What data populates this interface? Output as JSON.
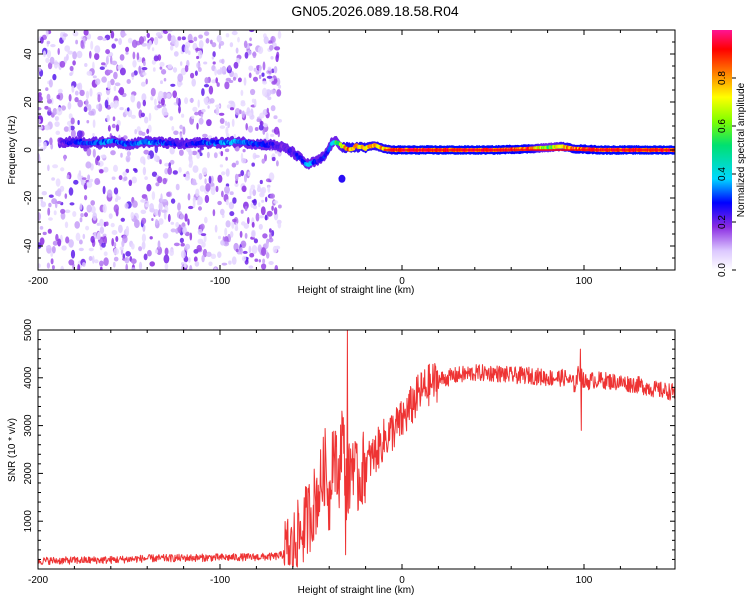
{
  "title": "GN05.2026.089.18.58.R04",
  "chart_data": [
    {
      "type": "heatmap",
      "name": "spectrogram",
      "xlabel": "Height of straight line (km)",
      "ylabel": "Frequency (Hz)",
      "xlim": [
        -200,
        150
      ],
      "ylim": [
        -50,
        50
      ],
      "x_ticks": [
        -200,
        -100,
        0,
        100
      ],
      "x_tick_labels": [
        "-200",
        "-100",
        "0",
        "100"
      ],
      "y_ticks": [
        -40,
        -20,
        0,
        20,
        40
      ],
      "y_tick_labels": [
        "-40",
        "-20",
        "0",
        "20",
        "40"
      ],
      "noise_region_km": [
        -200,
        -67
      ],
      "ridge": {
        "x": [
          -188,
          -180,
          -170,
          -160,
          -150,
          -140,
          -130,
          -120,
          -110,
          -100,
          -90,
          -80,
          -70,
          -65,
          -60,
          -55,
          -52,
          -48,
          -45,
          -42,
          -40,
          -38,
          -35,
          -32,
          -28,
          -25,
          -20,
          -15,
          -10,
          -5,
          0,
          10,
          30,
          50,
          70,
          80,
          88,
          95,
          110,
          130,
          150
        ],
        "y": [
          3,
          3.5,
          3,
          3.5,
          2.5,
          3.5,
          3,
          2.5,
          3,
          3,
          3.5,
          2.5,
          2,
          1,
          -1,
          -4,
          -6,
          -5,
          -4,
          -2,
          1,
          3.5,
          3,
          1,
          0.5,
          1.5,
          1,
          2,
          0.5,
          0,
          0,
          0,
          0,
          0,
          0.5,
          1,
          1.5,
          0.5,
          0,
          0,
          0
        ],
        "amplitude": [
          0.2,
          0.3,
          0.3,
          0.35,
          0.3,
          0.35,
          0.3,
          0.25,
          0.3,
          0.35,
          0.35,
          0.3,
          0.25,
          0.2,
          0.25,
          0.3,
          0.4,
          0.3,
          0.25,
          0.3,
          0.35,
          0.45,
          0.6,
          0.8,
          0.85,
          0.8,
          0.85,
          0.8,
          0.85,
          0.9,
          0.95,
          0.95,
          0.95,
          0.95,
          0.9,
          0.6,
          0.8,
          0.9,
          0.95,
          0.95,
          0.95
        ]
      },
      "colorbar": {
        "label": "Normalized spectral amplitude",
        "ticks": [
          0,
          0.2,
          0.4,
          0.6,
          0.8
        ],
        "tick_labels": [
          "0.0",
          "0.2",
          "0.4",
          "0.6",
          "0.8"
        ],
        "range": [
          0,
          1
        ]
      }
    },
    {
      "type": "line",
      "name": "snr",
      "xlabel": "Height of straight line (km)",
      "ylabel": "SNR (10 * v/v)",
      "xlim": [
        -200,
        150
      ],
      "ylim": [
        0,
        5000
      ],
      "x_ticks": [
        -200,
        -100,
        0,
        100
      ],
      "x_tick_labels": [
        "-200",
        "-100",
        "0",
        "100"
      ],
      "y_ticks": [
        1000,
        2000,
        3000,
        4000,
        5000
      ],
      "y_tick_labels": [
        "1000",
        "2000",
        "3000",
        "4000",
        "5000"
      ],
      "color": "#ee3333",
      "series": [
        {
          "name": "SNR",
          "x": [
            -200,
            -180,
            -160,
            -140,
            -120,
            -100,
            -80,
            -70,
            -65,
            -60,
            -55,
            -50,
            -45,
            -42,
            -40,
            -38,
            -35,
            -33,
            -30,
            -27,
            -25,
            -20,
            -15,
            -10,
            -5,
            0,
            5,
            10,
            15,
            20,
            25,
            30,
            40,
            50,
            60,
            70,
            80,
            90,
            95,
            97,
            99,
            100,
            105,
            110,
            120,
            130,
            140,
            150
          ],
          "y": [
            170,
            180,
            190,
            220,
            230,
            240,
            250,
            260,
            300,
            450,
            800,
            1200,
            1700,
            2200,
            1400,
            2600,
            1800,
            2900,
            1600,
            2400,
            1800,
            2200,
            2400,
            2700,
            2900,
            3100,
            3400,
            3700,
            3850,
            3950,
            4000,
            4050,
            4100,
            4100,
            4050,
            4050,
            4000,
            4000,
            3850,
            4100,
            4050,
            3900,
            3950,
            3950,
            3900,
            3850,
            3750,
            3700
          ]
        }
      ],
      "spikes": [
        {
          "x": -30,
          "y": 5000
        },
        {
          "x": -31,
          "y": 300
        },
        {
          "x": 98,
          "y": 4600
        },
        {
          "x": 98.5,
          "y": 2900
        }
      ]
    }
  ]
}
